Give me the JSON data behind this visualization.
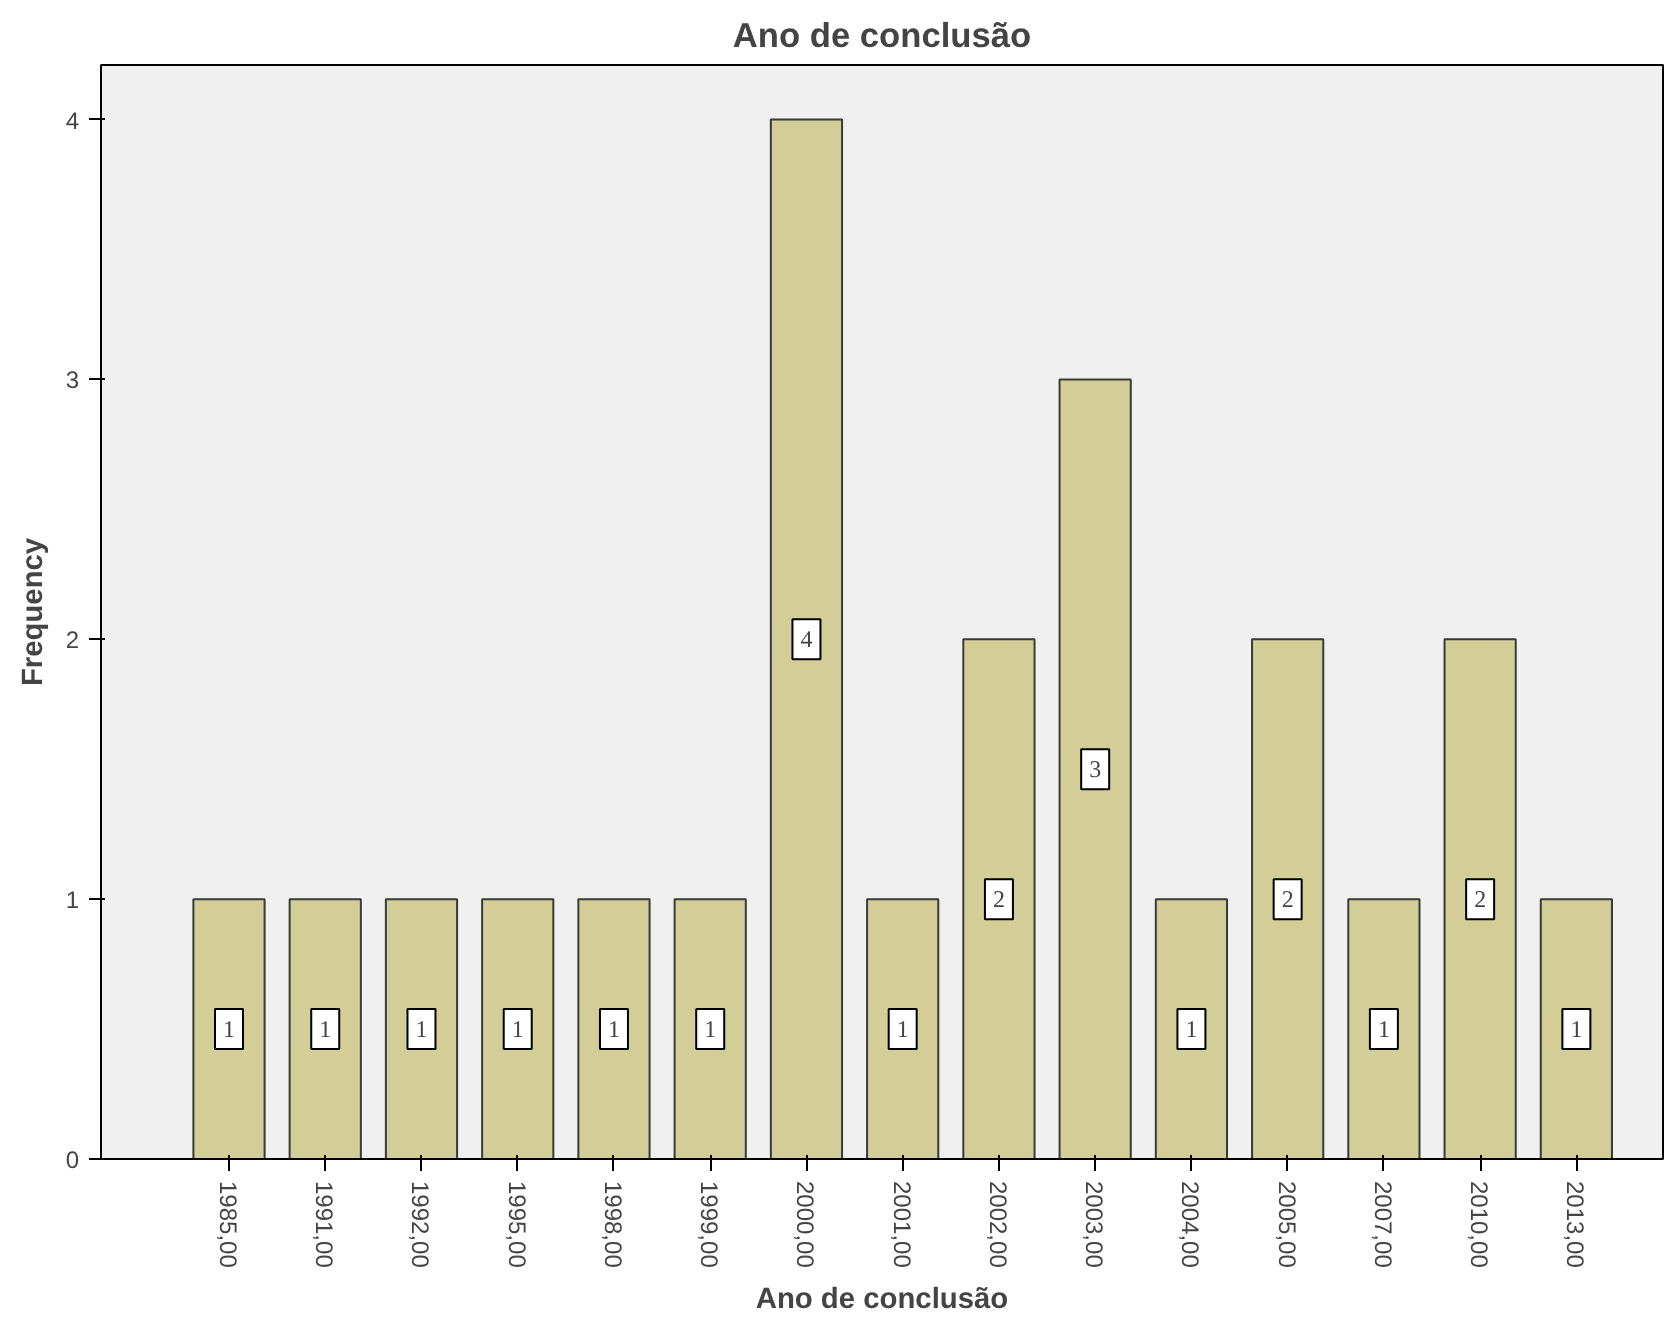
{
  "chart_data": {
    "type": "bar",
    "title": "Ano de conclusão",
    "xlabel": "Ano de conclusão",
    "ylabel": "Frequency",
    "categories": [
      "1985,00",
      "1991,00",
      "1992,00",
      "1995,00",
      "1998,00",
      "1999,00",
      "2000,00",
      "2001,00",
      "2002,00",
      "2003,00",
      "2004,00",
      "2005,00",
      "2007,00",
      "2010,00",
      "2013,00"
    ],
    "values": [
      1,
      1,
      1,
      1,
      1,
      1,
      4,
      1,
      2,
      3,
      1,
      2,
      1,
      2,
      1
    ],
    "color": "#d3ce97",
    "ylim": [
      0,
      4.21
    ],
    "yticks": [
      0,
      1,
      2,
      3,
      4
    ],
    "grid": false,
    "data_labels": true
  }
}
